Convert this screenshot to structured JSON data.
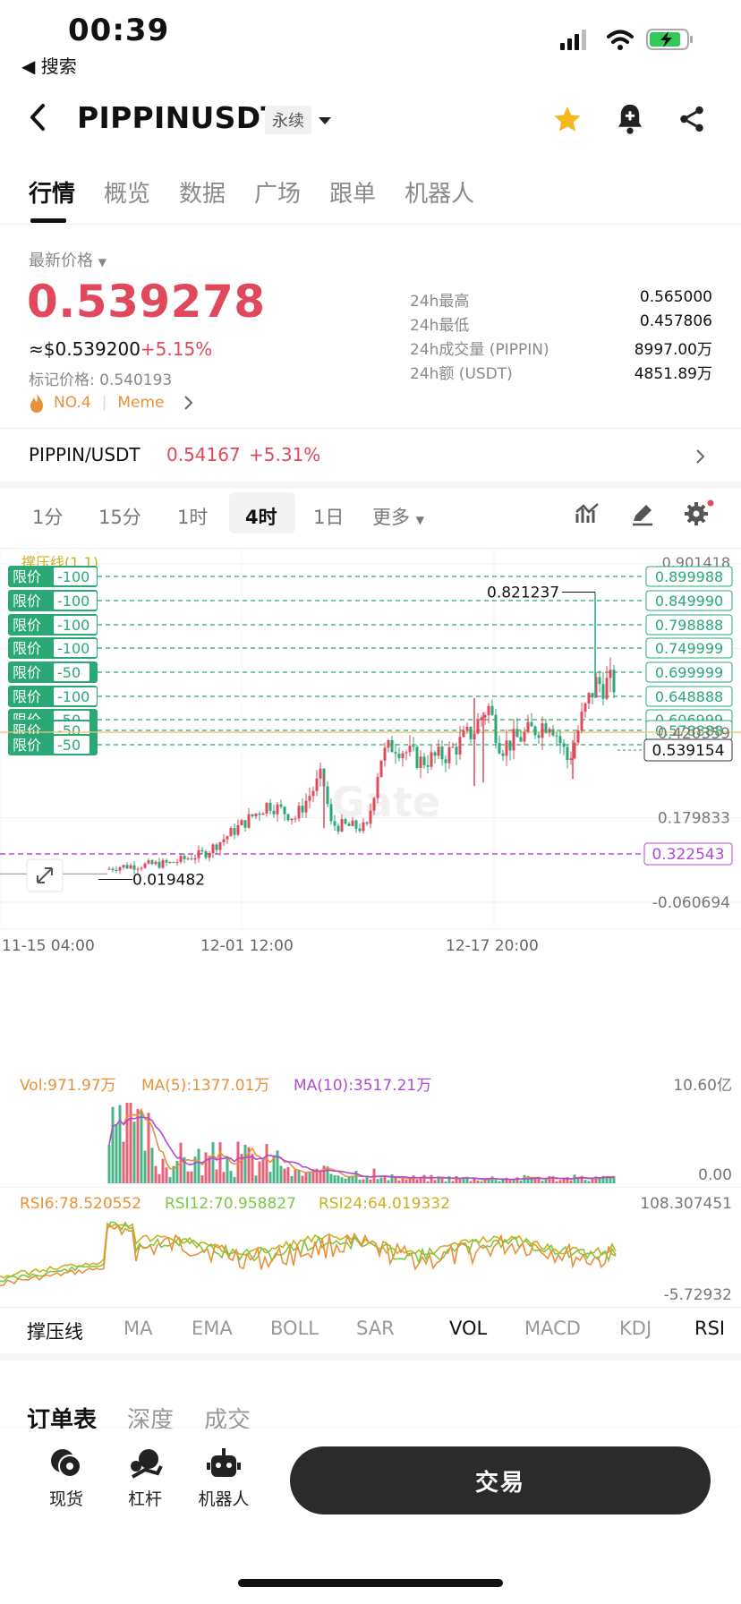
{
  "status": {
    "time": "00:39",
    "back_label": "◀ 搜索"
  },
  "header": {
    "pair": "PIPPINUSDT",
    "contract_type": "永续"
  },
  "tabs": [
    "行情",
    "概览",
    "数据",
    "广场",
    "跟单",
    "机器人"
  ],
  "price": {
    "label": "最新价格",
    "last": "0.539278",
    "usd": "≈$0.539200",
    "change": "+5.15%",
    "mark_label": "标记价格: 0.540193",
    "rank": "NO.4",
    "tag": "Meme"
  },
  "stats": [
    {
      "label": "24h最高",
      "value": "0.565000"
    },
    {
      "label": "24h最低",
      "value": "0.457806"
    },
    {
      "label": "24h成交量 (PIPPIN)",
      "value": "8997.00万"
    },
    {
      "label": "24h额 (USDT)",
      "value": "4851.89万"
    }
  ],
  "spot": {
    "pair": "PIPPIN/USDT",
    "price": "0.54167",
    "change": "+5.31%"
  },
  "timeframes": [
    "1分",
    "15分",
    "1时",
    "4时",
    "1日",
    "更多"
  ],
  "active_timeframe": "4时",
  "orders": [
    {
      "label": "限价",
      "qty": "-100",
      "price": "0.899988"
    },
    {
      "label": "限价",
      "qty": "-100",
      "price": "0.849990"
    },
    {
      "label": "限价",
      "qty": "-100",
      "price": "0.798888"
    },
    {
      "label": "限价",
      "qty": "-100",
      "price": "0.749999"
    },
    {
      "label": "限价",
      "qty": "-50",
      "price": "0.699999"
    },
    {
      "label": "限价",
      "qty": "-100",
      "price": "0.648888"
    },
    {
      "label": "限价",
      "qty": "-50",
      "price": "0.606999"
    },
    {
      "label": "限价",
      "qty": "-50",
      "price": "0.578888"
    },
    {
      "label": "限价",
      "qty": "-50",
      "price": ""
    }
  ],
  "chart": {
    "watermark": "Gate",
    "overlay_title": "撑压线(1,1)",
    "top_price": "0.901418",
    "y_ticks": [
      "0.420359",
      "0.179833",
      "-0.060694"
    ],
    "x_ticks": [
      "11-15 04:00",
      "12-01 12:00",
      "12-17 20:00"
    ],
    "current_price": "0.539154",
    "line_price": "0.322543",
    "high_label": "0.821237",
    "low_label": "0.019482",
    "colors": {
      "up": "#e0485c",
      "down": "#2aa876",
      "order": "#2aa876",
      "support": "#b04ad8"
    }
  },
  "volume": {
    "vol": "Vol:971.97万",
    "ma5": "MA(5):1377.01万",
    "ma10": "MA(10):3517.21万",
    "max": "10.60亿",
    "min": "0.00"
  },
  "rsi": {
    "rsi6": "RSI6:78.520552",
    "rsi12": "RSI12:70.958827",
    "rsi24": "RSI24:64.019332",
    "max": "108.307451",
    "min": "-5.72932"
  },
  "indicators": [
    "撑压线",
    "MA",
    "EMA",
    "BOLL",
    "SAR",
    "VOL",
    "MACD",
    "KDJ",
    "RSI"
  ],
  "bottom_tabs": [
    "订单表",
    "深度",
    "成交"
  ],
  "dock": [
    "现货",
    "杠杆",
    "机器人"
  ],
  "trade_button": "交易"
}
